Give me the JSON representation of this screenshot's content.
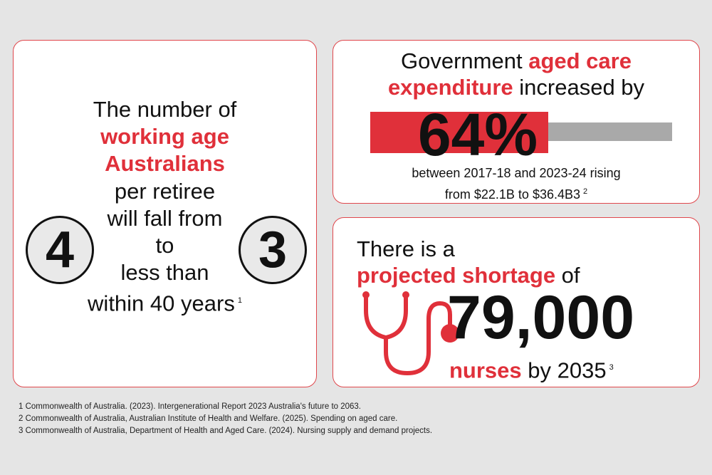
{
  "left_card": {
    "line1": "The number of",
    "line2": "working age",
    "line3": "Australians",
    "line4": "per retiree",
    "line5": "will fall from",
    "line6": "to",
    "line7": "less than",
    "line8": "within 40 years",
    "ref": "1",
    "from_value": "4",
    "to_value": "3"
  },
  "top_card": {
    "headline_part1": "Government ",
    "headline_red1": "aged care",
    "headline_red2": "expenditure",
    "headline_part2": " increased by",
    "percent": "64%",
    "percent_value": 64,
    "detail_line1": "between 2017-18 and 2023-24 rising",
    "detail_line2": "from $22.1B to $36.4B3",
    "ref": "2",
    "colors": {
      "accent": "#e0303a",
      "track": "#a9a9a9"
    }
  },
  "bottom_card": {
    "line1": "There is a",
    "line2_red": "projected shortage",
    "line2_rest": " of",
    "number": "79,000",
    "nurses_red": "nurses",
    "by_text": " by 2035",
    "ref": "3",
    "icon": "stethoscope-icon"
  },
  "footnotes": [
    "1 Commonwealth of Australia. (2023). Intergenerational Report 2023 Australia's future to 2063.",
    "2 Commonwealth of Australia, Australian Institute of Health and Welfare. (2025). Spending on aged care.",
    "3 Commonwealth of Australia, Department of Health and Aged Care. (2024). Nursing supply and demand projects."
  ]
}
